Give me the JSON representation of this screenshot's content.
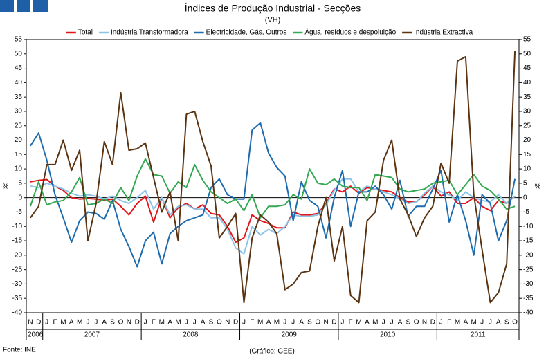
{
  "chart_data": {
    "type": "line",
    "title": "Índices de Produção Industrial - Secções",
    "subtitle": "(VH)",
    "ylabel": "%",
    "source": "Fonte: INE",
    "credit": "(Gráfico: GEE)",
    "categories": [
      "N",
      "D",
      "J",
      "F",
      "M",
      "A",
      "M",
      "J",
      "J",
      "A",
      "S",
      "O",
      "N",
      "D",
      "J",
      "F",
      "M",
      "A",
      "M",
      "J",
      "J",
      "A",
      "S",
      "O",
      "N",
      "D",
      "J",
      "F",
      "M",
      "A",
      "M",
      "J",
      "J",
      "A",
      "S",
      "O",
      "N",
      "D",
      "J",
      "F",
      "M",
      "A",
      "M",
      "J",
      "J",
      "A",
      "S",
      "O",
      "N",
      "D",
      "J",
      "F",
      "M",
      "A",
      "M",
      "J",
      "J",
      "A",
      "S",
      "O"
    ],
    "years": [
      "2006",
      "2007",
      "2008",
      "2009",
      "2010",
      "2011"
    ],
    "ylim": [
      -40,
      55
    ],
    "yticks": [
      -40,
      -35,
      -30,
      -25,
      -20,
      -15,
      -10,
      -5,
      0,
      5,
      10,
      15,
      20,
      25,
      30,
      35,
      40,
      45,
      50,
      55
    ],
    "y2lim": [
      -40,
      55
    ],
    "y2ticks": [
      -40,
      -35,
      -30,
      -25,
      -20,
      -15,
      -10,
      -5,
      0,
      5,
      10,
      15,
      20,
      25,
      30,
      35,
      40,
      45,
      50,
      55
    ],
    "series": [
      {
        "name": "Total",
        "color": "#e0161b",
        "values": [
          5.5,
          6,
          6.3,
          4,
          2.5,
          0,
          -0.5,
          -0.3,
          -0.5,
          -1,
          -0.5,
          -3,
          -6,
          -2,
          0.5,
          -8.5,
          0,
          -7,
          -3.5,
          -2,
          -4,
          -2.5,
          -5.5,
          -6,
          -10,
          -15.5,
          -14,
          -6,
          -8,
          -9,
          -10.5,
          -10.5,
          -5,
          -6,
          -6,
          -5.5,
          -2,
          3,
          2,
          4,
          1.5,
          3.5,
          3,
          2.5,
          2,
          0,
          -1.5,
          -1.5,
          1,
          4,
          0.5,
          2,
          -2,
          -2,
          0,
          -3,
          -4.5,
          -1,
          -2,
          0.5
        ]
      },
      {
        "name": "Indústria Transformadora",
        "color": "#8cc4e8",
        "values": [
          4,
          3.5,
          5,
          4,
          3,
          1.5,
          0.5,
          1,
          0.5,
          -0.5,
          0.5,
          -1,
          -2,
          0,
          2.5,
          -4,
          0,
          -6,
          -3,
          -2.5,
          -4,
          -4,
          -7,
          -7,
          -11,
          -17.5,
          -19.5,
          -10,
          -13,
          -11,
          -12.5,
          -10,
          -6,
          -6.5,
          -6.5,
          -6,
          -2.5,
          2.5,
          6.5,
          6.5,
          2,
          4,
          3,
          2,
          1,
          -0.5,
          -2,
          -1.5,
          1.5,
          4,
          2,
          1,
          -1,
          2,
          0,
          -1,
          -1.5,
          1,
          -2,
          0.5
        ]
      },
      {
        "name": "Electricidade, Gás, Outros",
        "color": "#1e6cb0",
        "values": [
          18,
          22.5,
          13,
          1,
          -7,
          -15.5,
          -8,
          -5,
          -5.5,
          -7.5,
          -1,
          -11,
          -17,
          -24,
          -15,
          -12,
          -23,
          -12.5,
          -10,
          -8,
          -7,
          -6,
          3.5,
          6.5,
          1,
          -0.5,
          -0.5,
          23.5,
          26,
          15.5,
          10.5,
          7.5,
          -8,
          5.5,
          -1,
          -3,
          -14,
          0,
          9.5,
          -10,
          2,
          2,
          4,
          1,
          -4,
          6,
          -6.5,
          -3,
          -3,
          3,
          9.5,
          -8.5,
          1,
          -8,
          -20,
          1,
          -2,
          -15,
          -8,
          6.5
        ]
      },
      {
        "name": "Água, resíduos e despoluição",
        "color": "#34a853",
        "values": [
          -3,
          5.5,
          -2.5,
          -1.5,
          -1,
          2,
          7,
          -2.5,
          -2,
          -0.5,
          -2,
          3.5,
          -1,
          7.5,
          13.5,
          8,
          7.5,
          1.5,
          5.5,
          3.5,
          11.5,
          6,
          2,
          0,
          -2,
          -0.5,
          -4.5,
          1,
          -7,
          -3,
          -3,
          -2.5,
          1,
          -0.5,
          10,
          5,
          4.5,
          6.5,
          4,
          3.5,
          3.5,
          -1,
          8,
          7.5,
          7,
          3,
          2,
          2.5,
          3,
          5,
          5.5,
          6,
          1,
          4.5,
          8,
          4,
          2.5,
          -0.5,
          -4,
          -3
        ]
      },
      {
        "name": "Indústria Extractiva",
        "color": "#5c3310",
        "values": [
          -7,
          -3,
          11.5,
          11.5,
          20,
          9.5,
          16.5,
          -15,
          -2,
          19.5,
          11.5,
          36.5,
          16.5,
          17,
          19,
          7,
          -5,
          2,
          -15,
          29,
          30,
          19.5,
          11,
          -14,
          -10,
          -5.5,
          -36.5,
          -14,
          -6,
          -8.5,
          -12.5,
          -32,
          -30,
          -26,
          -25.5,
          -10,
          0,
          -22,
          -10,
          -34,
          -36.5,
          -8,
          -5,
          13,
          20,
          -0.5,
          -6,
          -13.5,
          -7,
          -3,
          12,
          5,
          47.5,
          49,
          1,
          -18,
          -36.5,
          -33,
          -23,
          51
        ]
      }
    ]
  }
}
